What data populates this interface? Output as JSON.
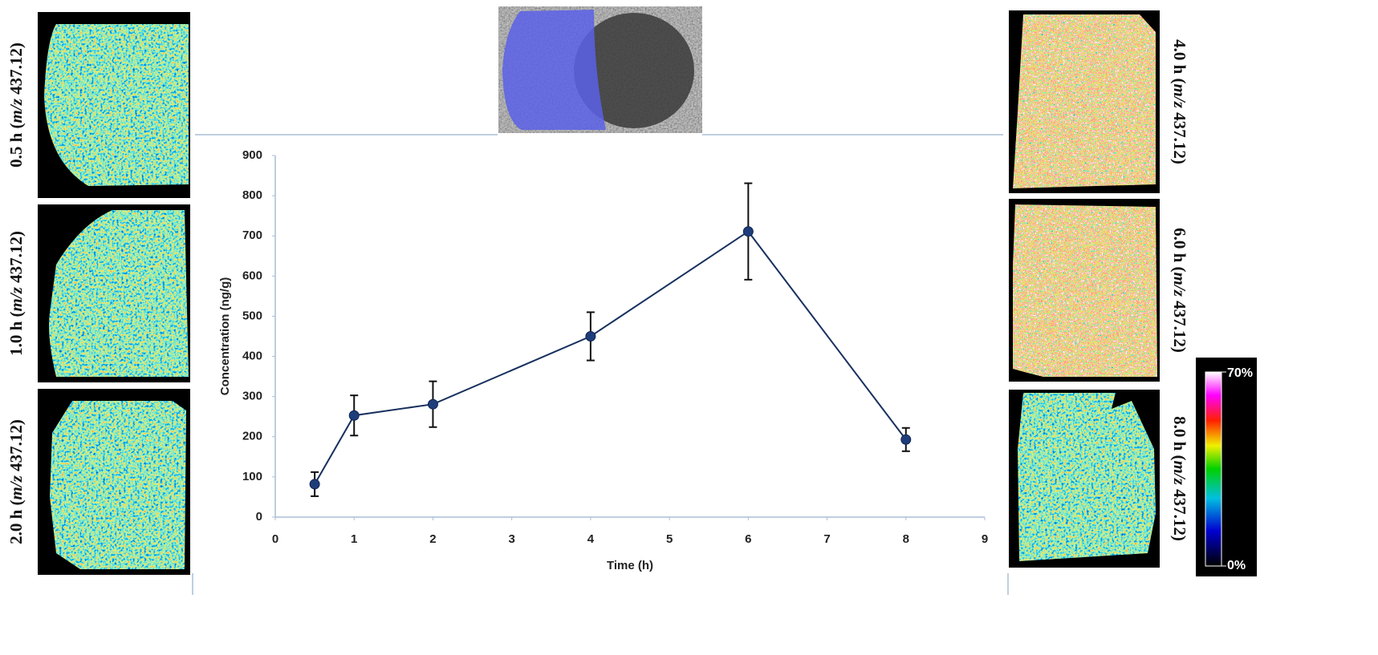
{
  "chart_data": {
    "type": "line",
    "xlabel": "Time (h)",
    "ylabel": "Concentration (ng/g)",
    "x": [
      0.5,
      1,
      2,
      4,
      6,
      8
    ],
    "values": [
      82,
      253,
      281,
      450,
      711,
      193
    ],
    "errors": [
      30,
      50,
      57,
      60,
      120,
      29
    ],
    "color": "#1f3d7a",
    "line_color": "#17305e",
    "error_color": "#111111",
    "xlim": [
      0,
      9
    ],
    "xticks": [
      0,
      1,
      2,
      3,
      4,
      5,
      6,
      7,
      8,
      9
    ],
    "ylim": [
      0,
      900
    ],
    "yticks": [
      0,
      100,
      200,
      300,
      400,
      500,
      600,
      700,
      800,
      900
    ],
    "grid": false
  },
  "images": [
    {
      "prefix": "0.5 h (",
      "italic": "m/z",
      "suffix": " 437.12)"
    },
    {
      "prefix": "1.0 h (",
      "italic": "m/z",
      "suffix": " 437.12)"
    },
    {
      "prefix": "2.0 h (",
      "italic": "m/z",
      "suffix": " 437.12)"
    },
    {
      "prefix": "4.0 h (",
      "italic": "m/z",
      "suffix": " 437.12)"
    },
    {
      "prefix": "6.0 h (",
      "italic": "m/z",
      "suffix": " 437.12)"
    },
    {
      "prefix": "8.0 h (",
      "italic": "m/z",
      "suffix": " 437.12)"
    }
  ],
  "colorbar": {
    "max_label": "70%",
    "min_label": "0%"
  }
}
